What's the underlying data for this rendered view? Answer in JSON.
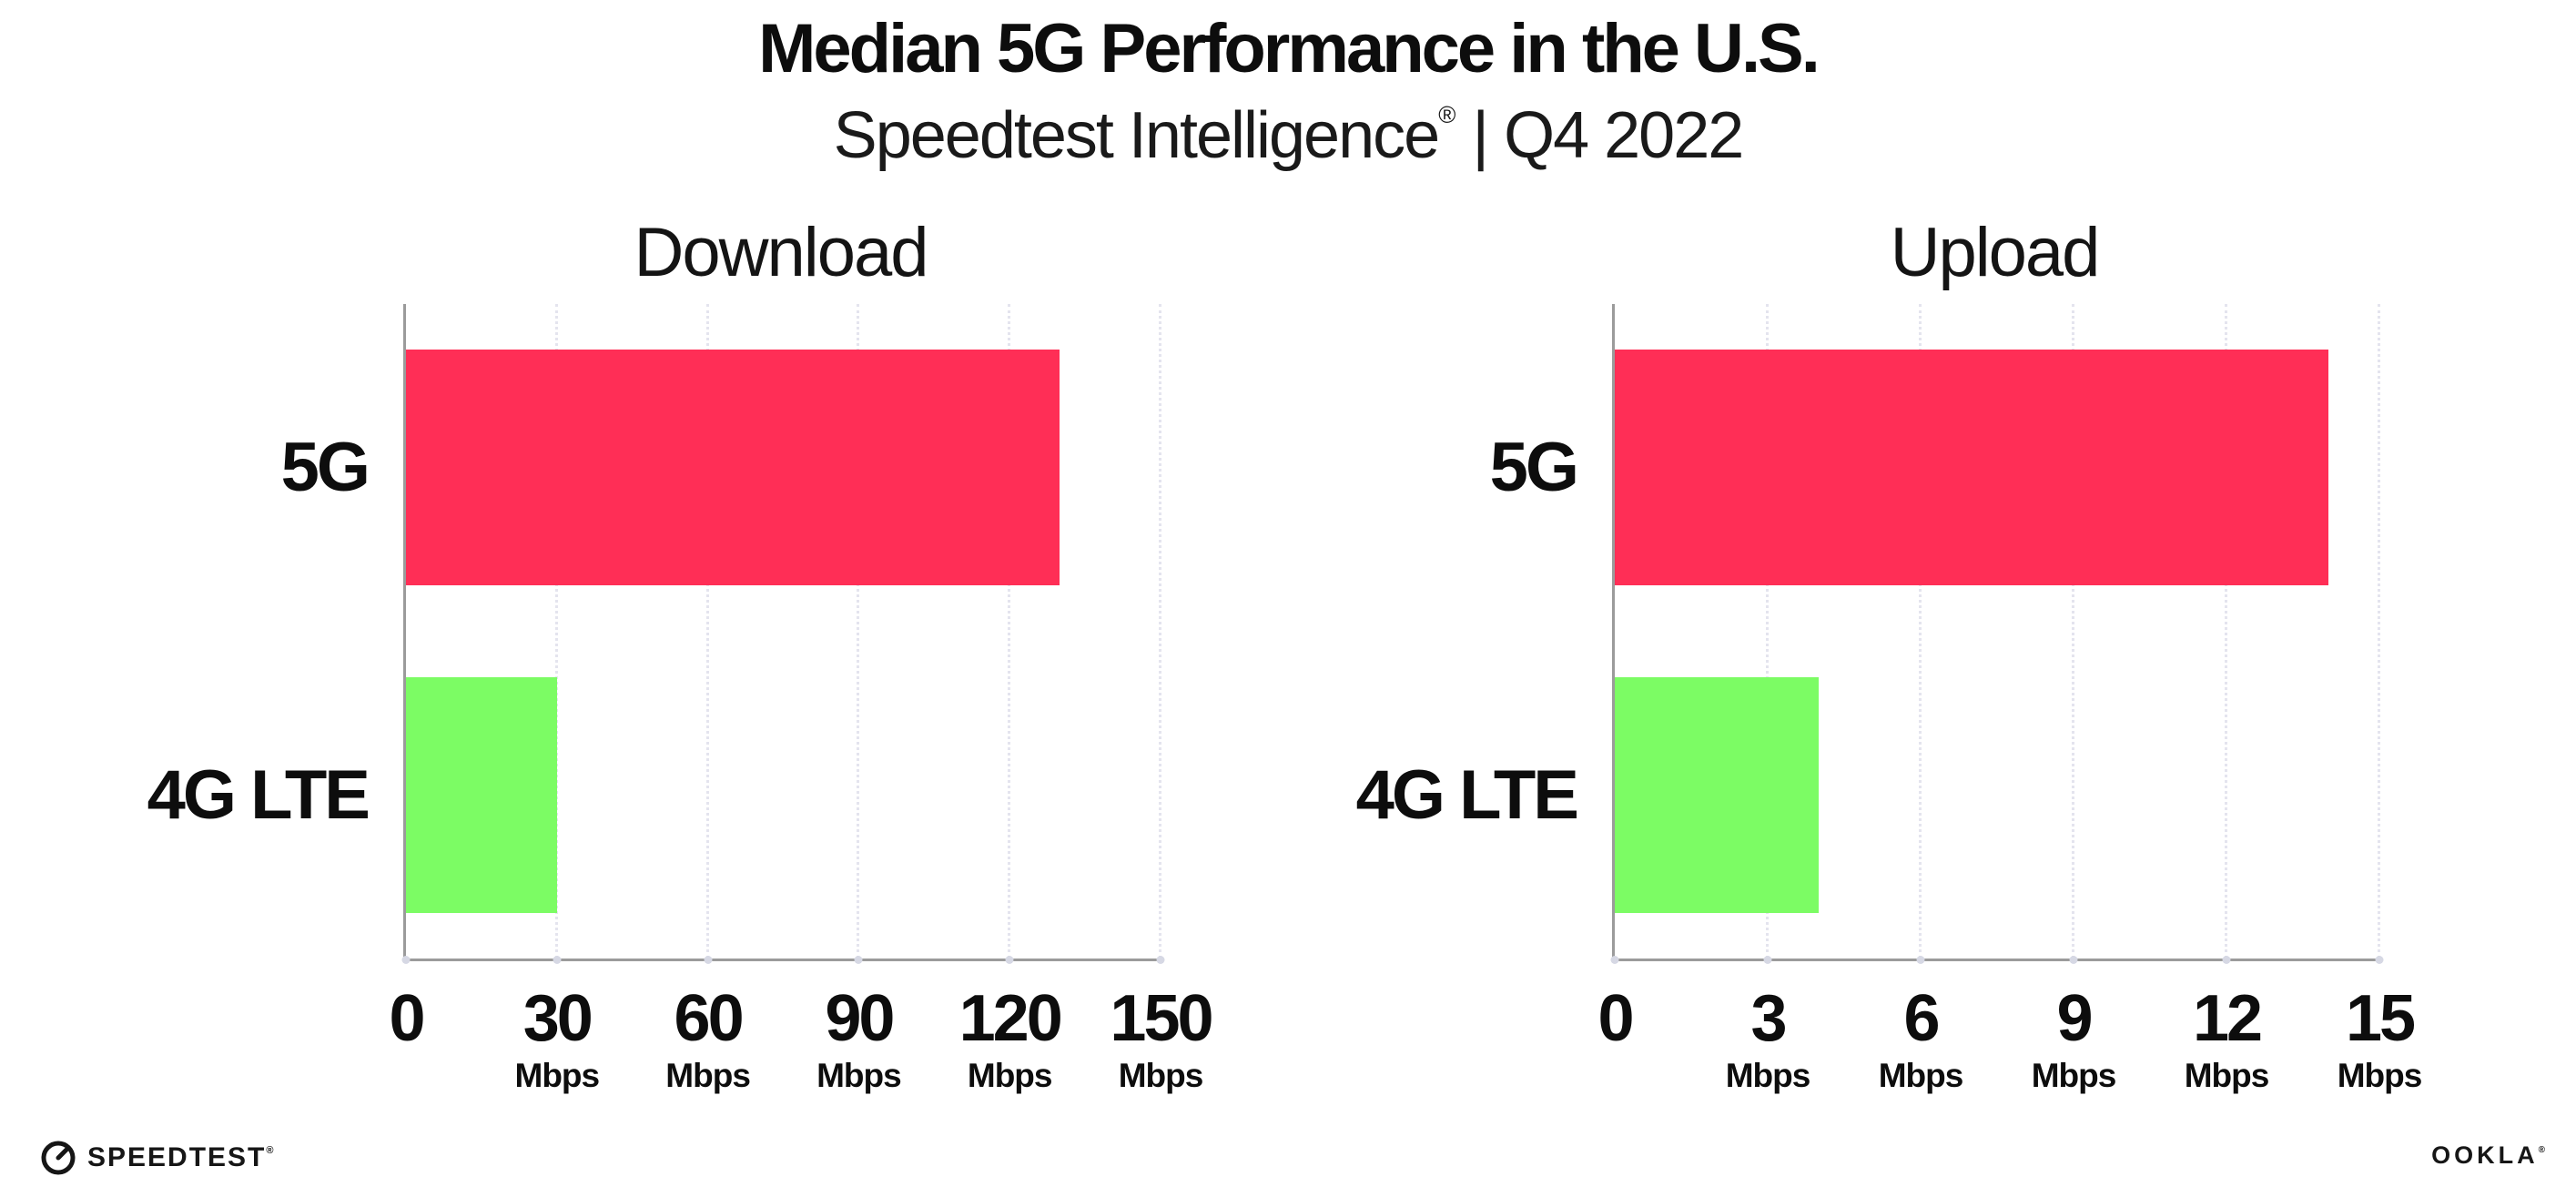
{
  "header": {
    "title": "Median 5G Performance in the U.S.",
    "subtitle_brand": "Speedtest Intelligence",
    "subtitle_reg": "®",
    "subtitle_rest": "| Q4 2022"
  },
  "chart_data": [
    {
      "type": "bar",
      "orientation": "horizontal",
      "title": "Download",
      "categories": [
        "5G",
        "4G LTE"
      ],
      "values": [
        130,
        30
      ],
      "unit": "Mbps",
      "xlim": [
        0,
        150
      ],
      "xticks": [
        0,
        30,
        60,
        90,
        120,
        150
      ],
      "bar_colors": [
        "#FF2E56",
        "#7CFC64"
      ],
      "grid": "dotted-vertical",
      "legend": "none"
    },
    {
      "type": "bar",
      "orientation": "horizontal",
      "title": "Upload",
      "categories": [
        "5G",
        "4G LTE"
      ],
      "values": [
        14,
        4
      ],
      "unit": "Mbps",
      "xlim": [
        0,
        15
      ],
      "xticks": [
        0,
        3,
        6,
        9,
        12,
        15
      ],
      "bar_colors": [
        "#FF2E56",
        "#7CFC64"
      ],
      "grid": "dotted-vertical",
      "legend": "none"
    }
  ],
  "colors": {
    "bar_5g": "#FF2E56",
    "bar_4g_lte": "#7CFC64",
    "axis": "#9b9b9b",
    "gridline": "#e4e4ee",
    "tick_dot": "#d6d8e4",
    "text": "#0d0d0d"
  },
  "footer": {
    "speedtest_icon": "speedtest-gauge-icon",
    "speedtest_label": "SPEEDTEST",
    "speedtest_reg": "®",
    "ookla_label": "OOKLA",
    "ookla_reg": "®"
  }
}
